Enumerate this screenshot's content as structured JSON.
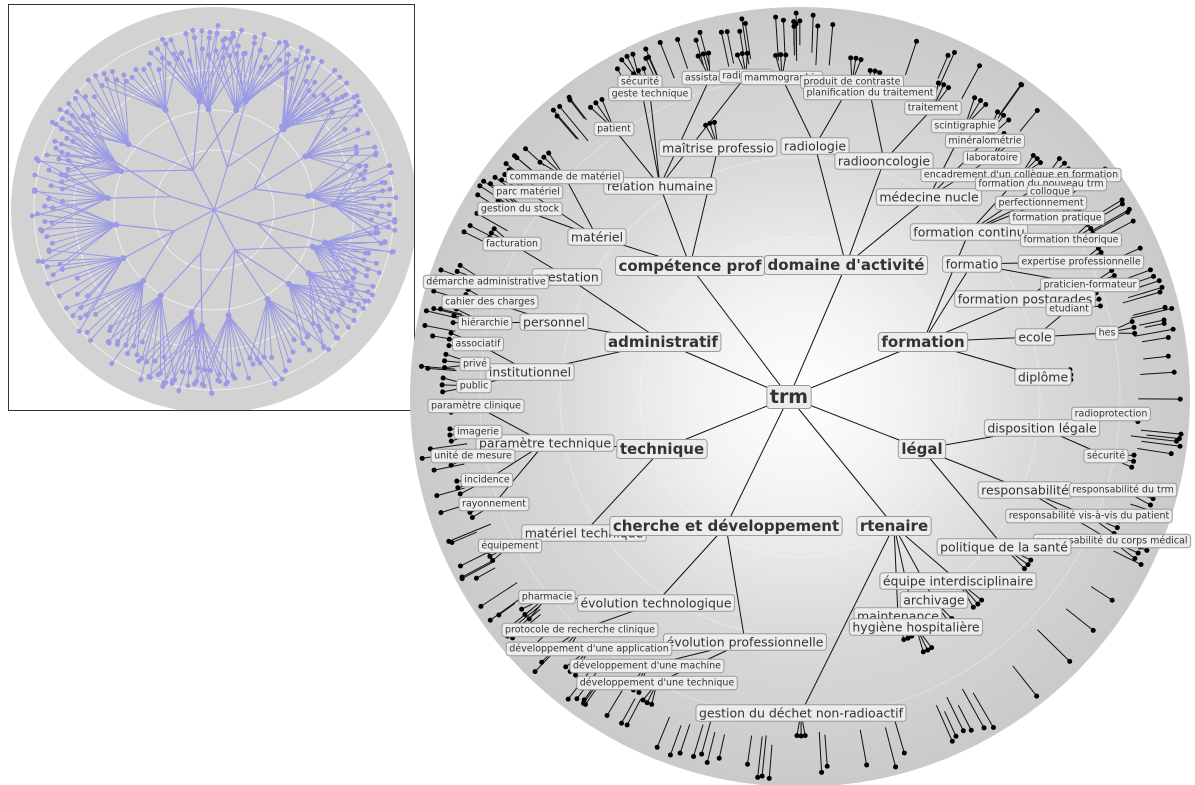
{
  "colors": {
    "disk": "#d2d2d2",
    "overview_edge": "#9a9ae6",
    "edge": "#111111",
    "label_bg": "#ececec",
    "label_border": "#9a9a9a"
  },
  "tree": {
    "root": "trm",
    "branches": [
      {
        "name": "compétence professionnelle",
        "label": "compétence prof",
        "children": [
          {
            "name": "relation humaine",
            "children": [
              "patient",
              "sécurité",
              "geste technique",
              "assistance",
              "radiologie"
            ]
          },
          {
            "name": "maîtrise professionnelle",
            "label": "maîtrise professio"
          },
          {
            "name": "matériel",
            "children": [
              "commande de matériel",
              "parc matériel",
              "gestion du stock"
            ]
          }
        ]
      },
      {
        "name": "domaine d'activité",
        "children": [
          {
            "name": "radiologie",
            "children": [
              "mammographie",
              "produit de contraste"
            ]
          },
          {
            "name": "radiooncologie",
            "children": [
              "planification du traitement",
              "traitement"
            ]
          },
          {
            "name": "médecine nucléaire",
            "label": "médecine nucle",
            "children": [
              "scintigraphie",
              "minéralométrie",
              "laboratoire"
            ]
          }
        ]
      },
      {
        "name": "administratif",
        "children": [
          {
            "name": "prestation",
            "children": [
              "facturation",
              "démarche administrative"
            ]
          },
          {
            "name": "personnel",
            "children": [
              "cahier des charges",
              "hiérarchie"
            ]
          },
          {
            "name": "institutionnel",
            "children": [
              "associatif",
              "privé",
              "public"
            ]
          }
        ]
      },
      {
        "name": "formation",
        "children": [
          {
            "name": "formation continue",
            "label": "formation continu",
            "children": [
              "encadrement d'un collègue en formation",
              "formation du nouveau trm",
              "colloque",
              "perfectionnement",
              "formation pratique",
              "formation théorique"
            ]
          },
          {
            "name": "formation",
            "label": "formatio",
            "children": [
              "expertise professionnelle",
              "praticien-formateur"
            ]
          },
          {
            "name": "formation postgrade",
            "label": "formation postgrades"
          },
          {
            "name": "ecole",
            "children": [
              "etudiant",
              "hes"
            ]
          },
          {
            "name": "diplôme"
          }
        ]
      },
      {
        "name": "technique",
        "children": [
          {
            "name": "paramètre technique",
            "children": [
              "paramètre clinique",
              "imagerie",
              "unité de mesure",
              "incidence",
              "rayonnement"
            ]
          },
          {
            "name": "matériel technique",
            "children": [
              "équipement"
            ]
          }
        ]
      },
      {
        "name": "légal",
        "children": [
          {
            "name": "disposition légale",
            "children": [
              "radioprotection",
              "sécurité"
            ]
          },
          {
            "name": "responsabilité",
            "children": [
              "responsabilité du trm",
              "responsabilité vis-à-vis du patient",
              "responsabilité du corps médical"
            ]
          },
          {
            "name": "politique de la santé"
          }
        ]
      },
      {
        "name": "recherche et développement",
        "label": "cherche et développement",
        "children": [
          {
            "name": "évolution technologique",
            "children": [
              "pharmacie",
              "protocole de recherche clinique"
            ]
          },
          {
            "name": "évolution professionnelle",
            "children": [
              "développement d'une application",
              "développement d'une machine",
              "développement d'une technique"
            ]
          }
        ]
      },
      {
        "name": "partenaire",
        "label": "rtenaire",
        "children": [
          {
            "name": "équipe interdisciplinaire"
          },
          {
            "name": "archivage"
          },
          {
            "name": "maintenance"
          },
          {
            "name": "hygiène hospitalière"
          },
          {
            "name": "gestion du déchet non-radioactif"
          }
        ]
      }
    ]
  }
}
